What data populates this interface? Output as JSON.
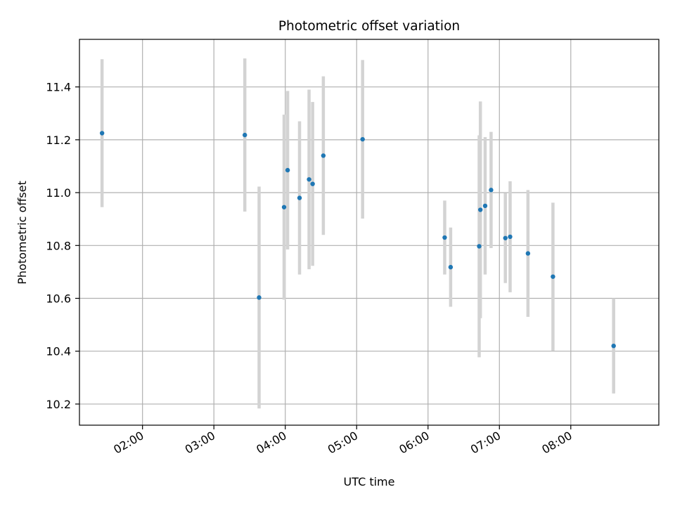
{
  "chart_data": {
    "type": "scatter",
    "title": "Photometric offset variation",
    "xlabel": "UTC time",
    "ylabel": "Photometric offset",
    "xlim": [
      "01:07",
      "09:14"
    ],
    "ylim": [
      10.12,
      11.58
    ],
    "grid": true,
    "x_ticks": [
      "02:00",
      "03:00",
      "04:00",
      "05:00",
      "06:00",
      "07:00",
      "08:00"
    ],
    "y_ticks": [
      "10.2",
      "10.4",
      "10.6",
      "10.8",
      "11.0",
      "11.2",
      "11.4"
    ],
    "marker_color": "#1f77b4",
    "errorbar_color": "#d3d3d3",
    "points": [
      {
        "x": "01:26",
        "y": 11.225,
        "err": 0.28
      },
      {
        "x": "03:26",
        "y": 11.218,
        "err": 0.29
      },
      {
        "x": "03:38",
        "y": 10.603,
        "err": 0.42
      },
      {
        "x": "03:59",
        "y": 10.945,
        "err": 0.35
      },
      {
        "x": "04:02",
        "y": 11.085,
        "err": 0.3
      },
      {
        "x": "04:12",
        "y": 10.98,
        "err": 0.29
      },
      {
        "x": "04:20",
        "y": 11.05,
        "err": 0.34
      },
      {
        "x": "04:23",
        "y": 11.033,
        "err": 0.31
      },
      {
        "x": "04:32",
        "y": 11.14,
        "err": 0.3
      },
      {
        "x": "05:05",
        "y": 11.202,
        "err": 0.3
      },
      {
        "x": "06:14",
        "y": 10.83,
        "err": 0.14
      },
      {
        "x": "06:19",
        "y": 10.718,
        "err": 0.15
      },
      {
        "x": "06:43",
        "y": 10.797,
        "err": 0.42
      },
      {
        "x": "06:44",
        "y": 10.935,
        "err": 0.41
      },
      {
        "x": "06:48",
        "y": 10.95,
        "err": 0.26
      },
      {
        "x": "06:53",
        "y": 11.01,
        "err": 0.22
      },
      {
        "x": "07:05",
        "y": 10.828,
        "err": 0.17
      },
      {
        "x": "07:09",
        "y": 10.833,
        "err": 0.21
      },
      {
        "x": "07:24",
        "y": 10.77,
        "err": 0.24
      },
      {
        "x": "07:45",
        "y": 10.682,
        "err": 0.28
      },
      {
        "x": "08:36",
        "y": 10.42,
        "err": 0.18
      }
    ]
  }
}
